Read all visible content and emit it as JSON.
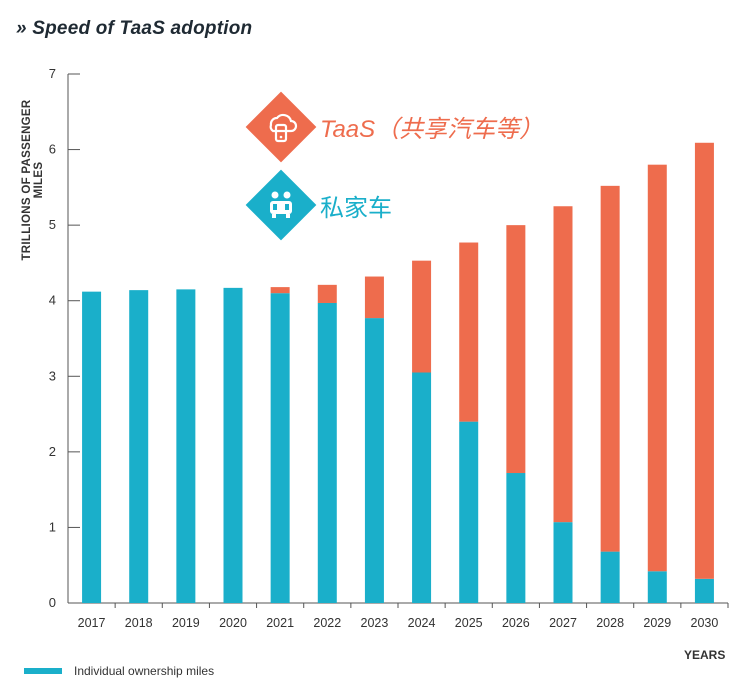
{
  "title": "» Speed of TaaS adoption",
  "ylabel": "TRILLIONS OF PASSENGER MILES",
  "xlabel": "YEARS",
  "legend": {
    "individual": "Individual ownership miles"
  },
  "annotations": {
    "taas": {
      "label": "TaaS（共享汽车等）",
      "color": "#ee6c4d",
      "icon": "cloud-car-icon"
    },
    "private": {
      "label": "私家车",
      "color": "#1aafca",
      "icon": "family-car-icon"
    }
  },
  "colors": {
    "individual": "#1aafca",
    "taas": "#ee6c4d"
  },
  "chart_data": {
    "type": "bar",
    "stacked": true,
    "categories": [
      "2017",
      "2018",
      "2019",
      "2020",
      "2021",
      "2022",
      "2023",
      "2024",
      "2025",
      "2026",
      "2027",
      "2028",
      "2029",
      "2030"
    ],
    "series": [
      {
        "name": "Individual ownership miles",
        "values": [
          4.12,
          4.14,
          4.15,
          4.17,
          4.1,
          3.97,
          3.77,
          3.05,
          2.4,
          1.72,
          1.07,
          0.68,
          0.42,
          0.32
        ]
      },
      {
        "name": "",
        "values": [
          0,
          0,
          0,
          0,
          0.08,
          0.24,
          0.55,
          1.48,
          2.37,
          3.28,
          4.18,
          4.84,
          5.38,
          5.77
        ]
      }
    ],
    "xlabel": "YEARS",
    "ylabel": "TRILLIONS OF PASSENGER MILES",
    "ylim": [
      0,
      7
    ],
    "yticks": [
      0,
      1,
      2,
      3,
      4,
      5,
      6,
      7
    ],
    "grid": false,
    "legend_position": "bottom-left"
  }
}
